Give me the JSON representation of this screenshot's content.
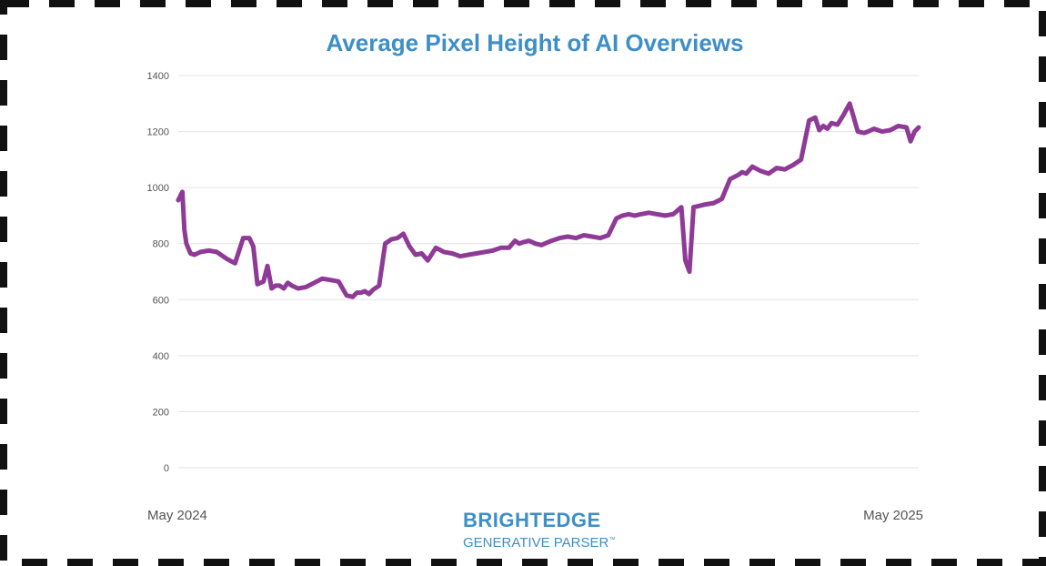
{
  "colors": {
    "title": "#3d8fc6",
    "series": "#8e3a96",
    "grid": "#e3e3e3",
    "tick": "#555555",
    "border": "#111111",
    "brand": "#3d8fc6"
  },
  "brand": {
    "main": "BRIGHTEDGE",
    "sub": "GENERATIVE PARSER",
    "tm": "™"
  },
  "chart_data": {
    "type": "line",
    "title": "Average Pixel Height of AI Overviews",
    "xlabel": "",
    "ylabel": "",
    "x_start_label": "May 2024",
    "x_end_label": "May 2025",
    "ylim": [
      0,
      1400
    ],
    "yticks": [
      0,
      200,
      400,
      600,
      800,
      1000,
      1200,
      1400
    ],
    "grid": true,
    "legend": "none",
    "x": [
      "2024-05-01",
      "2024-05-02",
      "2024-05-03",
      "2024-05-04",
      "2024-05-05",
      "2024-05-07",
      "2024-05-09",
      "2024-05-12",
      "2024-05-16",
      "2024-05-20",
      "2024-05-25",
      "2024-05-29",
      "2024-06-02",
      "2024-06-05",
      "2024-06-07",
      "2024-06-09",
      "2024-06-12",
      "2024-06-14",
      "2024-06-16",
      "2024-06-18",
      "2024-06-20",
      "2024-06-22",
      "2024-06-24",
      "2024-06-26",
      "2024-06-29",
      "2024-07-03",
      "2024-07-07",
      "2024-07-11",
      "2024-07-15",
      "2024-07-19",
      "2024-07-23",
      "2024-07-26",
      "2024-07-28",
      "2024-07-30",
      "2024-08-01",
      "2024-08-03",
      "2024-08-05",
      "2024-08-08",
      "2024-08-11",
      "2024-08-14",
      "2024-08-17",
      "2024-08-20",
      "2024-08-23",
      "2024-08-26",
      "2024-08-29",
      "2024-09-01",
      "2024-09-05",
      "2024-09-09",
      "2024-09-13",
      "2024-09-17",
      "2024-09-21",
      "2024-09-25",
      "2024-09-29",
      "2024-10-03",
      "2024-10-07",
      "2024-10-11",
      "2024-10-14",
      "2024-10-16",
      "2024-10-18",
      "2024-10-21",
      "2024-10-24",
      "2024-10-27",
      "2024-11-01",
      "2024-11-05",
      "2024-11-09",
      "2024-11-13",
      "2024-11-17",
      "2024-11-21",
      "2024-11-25",
      "2024-11-29",
      "2024-12-03",
      "2024-12-06",
      "2024-12-09",
      "2024-12-12",
      "2024-12-15",
      "2024-12-19",
      "2024-12-23",
      "2024-12-27",
      "2024-12-31",
      "2025-01-04",
      "2025-01-06",
      "2025-01-08",
      "2025-01-10",
      "2025-01-13",
      "2025-01-16",
      "2025-01-20",
      "2025-01-24",
      "2025-01-28",
      "2025-02-01",
      "2025-02-03",
      "2025-02-05",
      "2025-02-08",
      "2025-02-12",
      "2025-02-16",
      "2025-02-20",
      "2025-02-24",
      "2025-02-28",
      "2025-03-04",
      "2025-03-08",
      "2025-03-11",
      "2025-03-13",
      "2025-03-15",
      "2025-03-17",
      "2025-03-19",
      "2025-03-22",
      "2025-03-25",
      "2025-03-28",
      "2025-04-01",
      "2025-04-04",
      "2025-04-06",
      "2025-04-09",
      "2025-04-13",
      "2025-04-17",
      "2025-04-21",
      "2025-04-25",
      "2025-04-27",
      "2025-04-29",
      "2025-05-01"
    ],
    "series": [
      {
        "values": [
          955,
          970,
          985,
          850,
          800,
          765,
          760,
          770,
          775,
          770,
          745,
          730,
          820,
          820,
          790,
          655,
          665,
          720,
          640,
          650,
          650,
          640,
          660,
          650,
          640,
          645,
          660,
          675,
          670,
          665,
          615,
          610,
          625,
          625,
          630,
          620,
          635,
          650,
          800,
          815,
          820,
          835,
          790,
          760,
          765,
          740,
          785,
          770,
          765,
          755,
          760,
          765,
          770,
          775,
          785,
          785,
          810,
          800,
          805,
          810,
          800,
          795,
          810,
          820,
          825,
          820,
          830,
          825,
          820,
          830,
          890,
          900,
          905,
          900,
          905,
          910,
          905,
          900,
          905,
          930,
          740,
          700,
          930,
          935,
          940,
          945,
          960,
          1030,
          1045,
          1055,
          1050,
          1075,
          1060,
          1050,
          1070,
          1065,
          1080,
          1100,
          1240,
          1250,
          1205,
          1220,
          1210,
          1230,
          1225,
          1260,
          1300,
          1200,
          1195,
          1200,
          1210,
          1200,
          1205,
          1220,
          1215,
          1165,
          1200,
          1215
        ]
      }
    ]
  }
}
